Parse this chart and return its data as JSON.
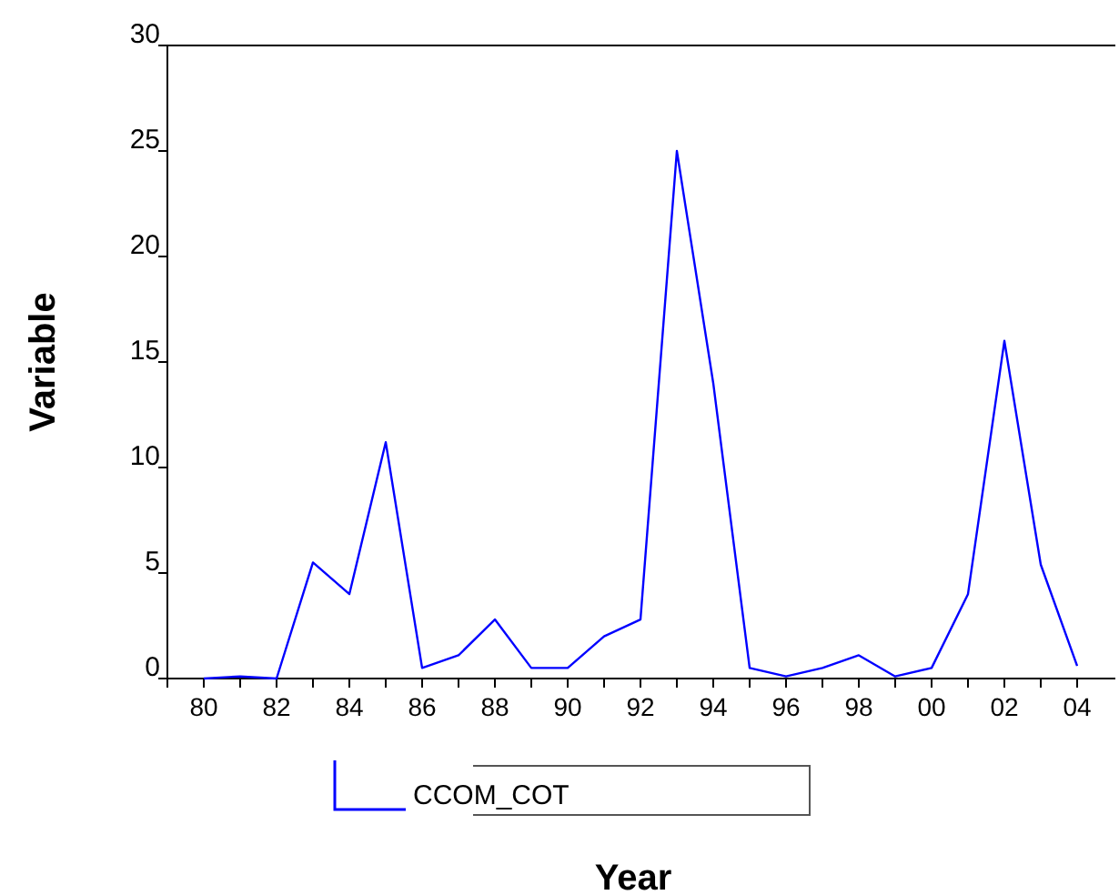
{
  "chart_data": {
    "type": "line",
    "xlabel": "Year",
    "ylabel": "Variable",
    "categories": [
      "80",
      null,
      "82",
      null,
      "84",
      null,
      "86",
      null,
      "88",
      null,
      "90",
      null,
      "92",
      null,
      "94",
      null,
      "96",
      null,
      "98",
      null,
      "00",
      null,
      "02",
      null,
      "04"
    ],
    "series": [
      {
        "name": "CCOM_COT",
        "color": "#0000ff",
        "values": [
          0,
          0.1,
          0,
          5.5,
          4,
          11.2,
          0.5,
          1.1,
          2.8,
          0.5,
          0.5,
          2,
          2.8,
          25,
          14,
          0.5,
          0.1,
          0.5,
          1.1,
          0.1,
          0.5,
          4,
          16,
          5.4,
          0.6
        ]
      }
    ],
    "ylim": [
      0,
      30
    ],
    "yticks": [
      0,
      5,
      10,
      15,
      20,
      25,
      30
    ],
    "grid": false,
    "legend": "bottom",
    "line_style": "solid",
    "marker": "none"
  }
}
